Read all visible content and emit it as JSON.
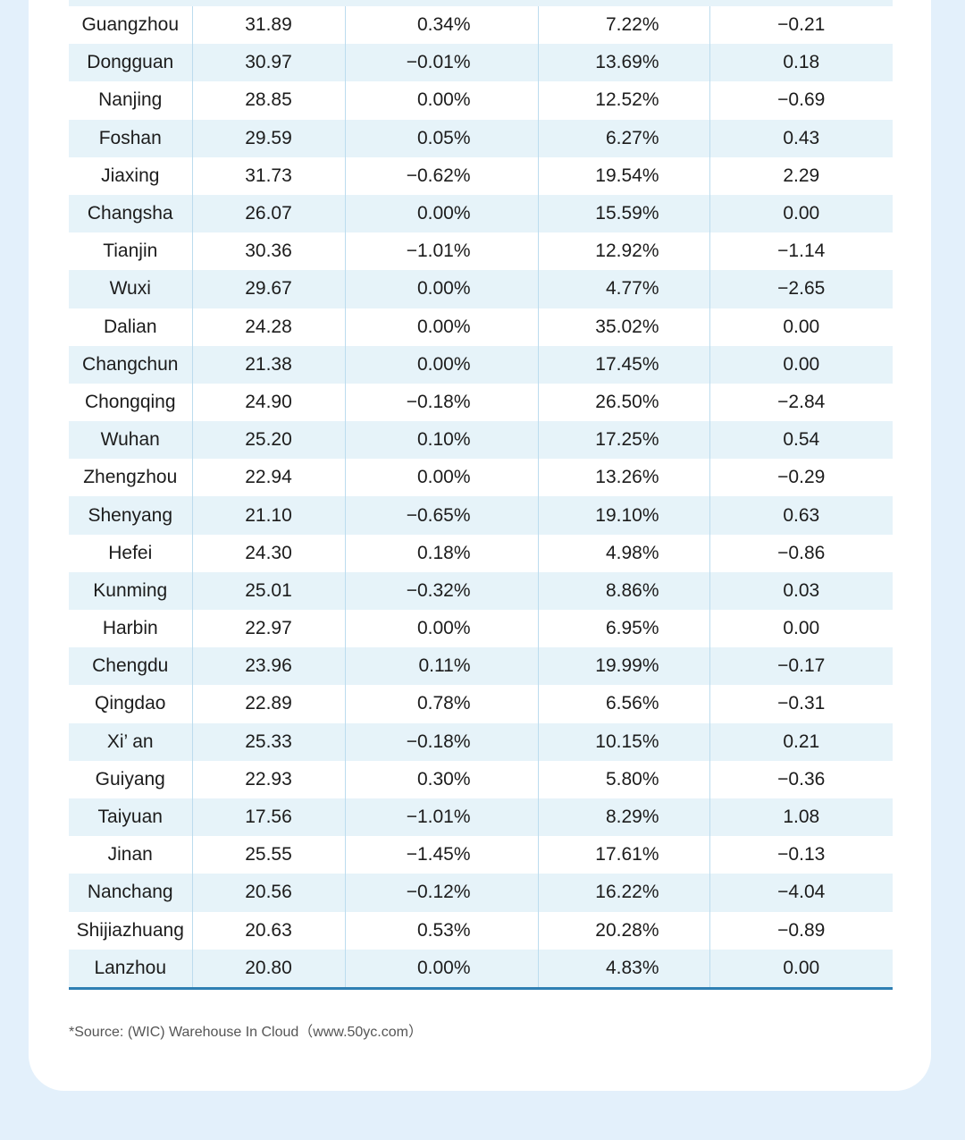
{
  "table": {
    "rows": [
      {
        "city": "Guangzhou",
        "v1": "31.89",
        "v2": "0.34%",
        "v3": "7.22%",
        "v4": "−0.21"
      },
      {
        "city": "Dongguan",
        "v1": "30.97",
        "v2": "−0.01%",
        "v3": "13.69%",
        "v4": "0.18"
      },
      {
        "city": "Nanjing",
        "v1": "28.85",
        "v2": "0.00%",
        "v3": "12.52%",
        "v4": "−0.69"
      },
      {
        "city": "Foshan",
        "v1": "29.59",
        "v2": "0.05%",
        "v3": "6.27%",
        "v4": "0.43"
      },
      {
        "city": "Jiaxing",
        "v1": "31.73",
        "v2": "−0.62%",
        "v3": "19.54%",
        "v4": "2.29"
      },
      {
        "city": "Changsha",
        "v1": "26.07",
        "v2": "0.00%",
        "v3": "15.59%",
        "v4": "0.00"
      },
      {
        "city": "Tianjin",
        "v1": "30.36",
        "v2": "−1.01%",
        "v3": "12.92%",
        "v4": "−1.14"
      },
      {
        "city": "Wuxi",
        "v1": "29.67",
        "v2": "0.00%",
        "v3": "4.77%",
        "v4": "−2.65"
      },
      {
        "city": "Dalian",
        "v1": "24.28",
        "v2": "0.00%",
        "v3": "35.02%",
        "v4": "0.00"
      },
      {
        "city": "Changchun",
        "v1": "21.38",
        "v2": "0.00%",
        "v3": "17.45%",
        "v4": "0.00"
      },
      {
        "city": "Chongqing",
        "v1": "24.90",
        "v2": "−0.18%",
        "v3": "26.50%",
        "v4": "−2.84"
      },
      {
        "city": "Wuhan",
        "v1": "25.20",
        "v2": "0.10%",
        "v3": "17.25%",
        "v4": "0.54"
      },
      {
        "city": "Zhengzhou",
        "v1": "22.94",
        "v2": "0.00%",
        "v3": "13.26%",
        "v4": "−0.29"
      },
      {
        "city": "Shenyang",
        "v1": "21.10",
        "v2": "−0.65%",
        "v3": "19.10%",
        "v4": "0.63"
      },
      {
        "city": "Hefei",
        "v1": "24.30",
        "v2": "0.18%",
        "v3": "4.98%",
        "v4": "−0.86"
      },
      {
        "city": "Kunming",
        "v1": "25.01",
        "v2": "−0.32%",
        "v3": "8.86%",
        "v4": "0.03"
      },
      {
        "city": "Harbin",
        "v1": "22.97",
        "v2": "0.00%",
        "v3": "6.95%",
        "v4": "0.00"
      },
      {
        "city": "Chengdu",
        "v1": "23.96",
        "v2": "0.11%",
        "v3": "19.99%",
        "v4": "−0.17"
      },
      {
        "city": "Qingdao",
        "v1": "22.89",
        "v2": "0.78%",
        "v3": "6.56%",
        "v4": "−0.31"
      },
      {
        "city": "Xi’ an",
        "v1": "25.33",
        "v2": "−0.18%",
        "v3": "10.15%",
        "v4": "0.21"
      },
      {
        "city": "Guiyang",
        "v1": "22.93",
        "v2": "0.30%",
        "v3": "5.80%",
        "v4": "−0.36"
      },
      {
        "city": "Taiyuan",
        "v1": "17.56",
        "v2": "−1.01%",
        "v3": "8.29%",
        "v4": "1.08"
      },
      {
        "city": "Jinan",
        "v1": "25.55",
        "v2": "−1.45%",
        "v3": "17.61%",
        "v4": "−0.13"
      },
      {
        "city": "Nanchang",
        "v1": "20.56",
        "v2": "−0.12%",
        "v3": "16.22%",
        "v4": "−4.04"
      },
      {
        "city": "Shijiazhuang",
        "v1": "20.63",
        "v2": "0.53%",
        "v3": "20.28%",
        "v4": "−0.89"
      },
      {
        "city": "Lanzhou",
        "v1": "20.80",
        "v2": "0.00%",
        "v3": "4.83%",
        "v4": "0.00"
      }
    ]
  },
  "footer": {
    "source": "*Source: (WIC) Warehouse In Cloud（www.50yc.com）"
  }
}
